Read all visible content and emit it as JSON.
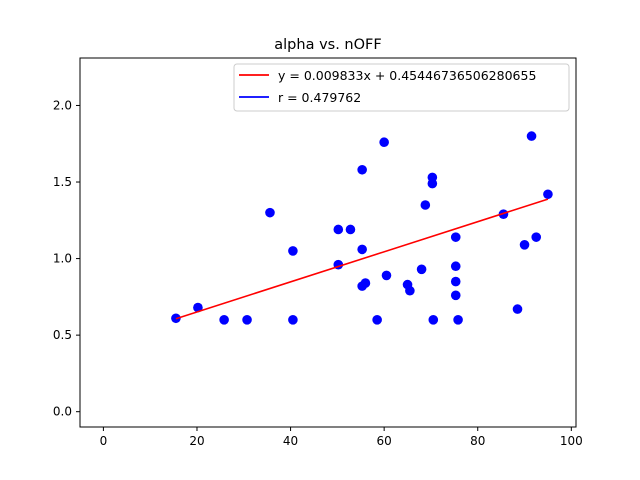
{
  "chart_data": {
    "type": "scatter",
    "title": "alpha vs. nOFF",
    "xlabel": "",
    "ylabel": "",
    "xlim": [
      -5,
      101
    ],
    "ylim": [
      -0.1,
      2.31
    ],
    "xticks": [
      0,
      20,
      40,
      60,
      80,
      100
    ],
    "yticks": [
      0.0,
      0.5,
      1.0,
      1.5,
      2.0
    ],
    "ytick_labels": [
      "0.0",
      "0.5",
      "1.0",
      "1.5",
      "2.0"
    ],
    "grid": false,
    "legend_position": "top-right",
    "series": [
      {
        "kind": "points",
        "color": "#0000ff",
        "points": [
          [
            15.5,
            0.61
          ],
          [
            20.2,
            0.68
          ],
          [
            25.8,
            0.6
          ],
          [
            30.7,
            0.6
          ],
          [
            35.6,
            1.3
          ],
          [
            40.5,
            1.05
          ],
          [
            40.5,
            0.6
          ],
          [
            50.2,
            1.19
          ],
          [
            50.2,
            0.96
          ],
          [
            52.8,
            1.19
          ],
          [
            55.3,
            1.58
          ],
          [
            55.3,
            1.06
          ],
          [
            55.3,
            0.82
          ],
          [
            56.0,
            0.84
          ],
          [
            58.5,
            0.6
          ],
          [
            60.0,
            1.76
          ],
          [
            60.5,
            0.89
          ],
          [
            65.0,
            0.83
          ],
          [
            65.5,
            0.79
          ],
          [
            68.0,
            0.93
          ],
          [
            68.8,
            1.35
          ],
          [
            70.3,
            1.53
          ],
          [
            70.3,
            1.49
          ],
          [
            70.5,
            0.6
          ],
          [
            75.3,
            1.14
          ],
          [
            75.3,
            0.95
          ],
          [
            75.3,
            0.85
          ],
          [
            75.3,
            0.76
          ],
          [
            75.8,
            0.6
          ],
          [
            85.5,
            1.29
          ],
          [
            88.5,
            0.67
          ],
          [
            90.0,
            1.09
          ],
          [
            91.5,
            1.8
          ],
          [
            92.5,
            1.14
          ],
          [
            95.0,
            1.42
          ]
        ]
      },
      {
        "name": "y = 0.009833x + 0.45446736506280655",
        "kind": "line",
        "color": "#ff0000",
        "slope": 0.009833,
        "intercept": 0.45446736506280655,
        "x_range": [
          15.5,
          95.0
        ]
      },
      {
        "name": "r = 0.479762",
        "kind": "legend-only",
        "color": "#0000ff"
      }
    ]
  }
}
